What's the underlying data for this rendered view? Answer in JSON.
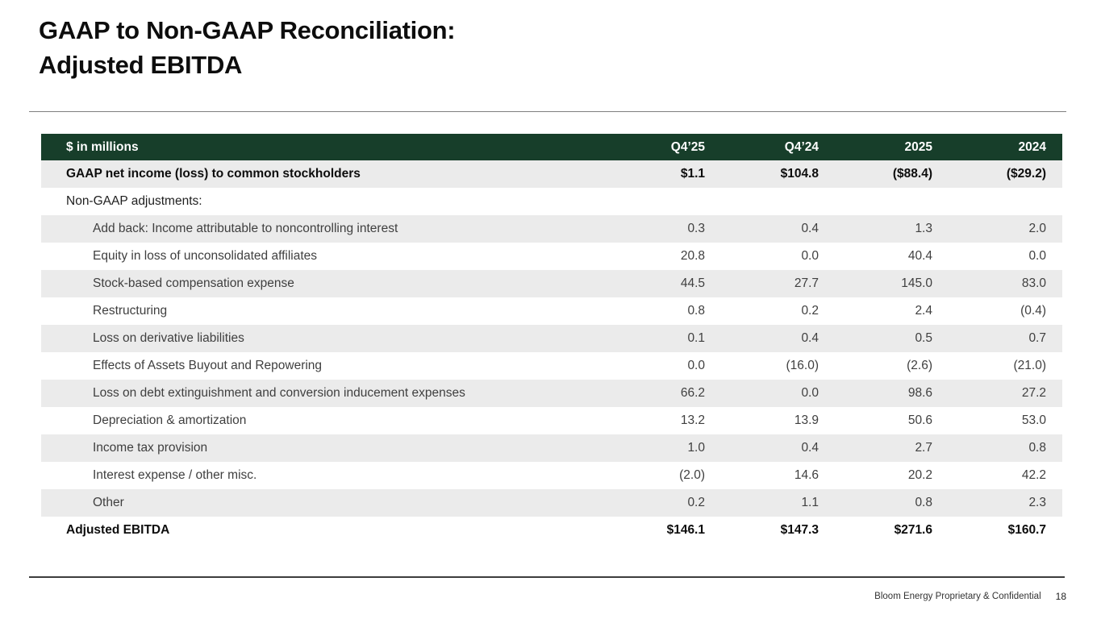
{
  "slide": {
    "title_line1": "GAAP to Non-GAAP Reconciliation:",
    "title_line2": "Adjusted EBITDA"
  },
  "table": {
    "unit_label": "$ in millions",
    "columns": [
      "Q4’25",
      "Q4’24",
      "2025",
      "2024"
    ],
    "rows": [
      {
        "label": "GAAP net income (loss) to common stockholders",
        "values": [
          "$1.1",
          "$104.8",
          "($88.4)",
          "($29.2)"
        ],
        "style": "bold",
        "indent": 0,
        "shade": true
      },
      {
        "label": "Non-GAAP adjustments:",
        "values": [
          "",
          "",
          "",
          ""
        ],
        "style": "plain",
        "indent": 0,
        "shade": false
      },
      {
        "label": "Add back: Income attributable to noncontrolling interest",
        "values": [
          "0.3",
          "0.4",
          "1.3",
          "2.0"
        ],
        "style": "adj",
        "indent": 1,
        "shade": true
      },
      {
        "label": "Equity in loss of unconsolidated affiliates",
        "values": [
          "20.8",
          "0.0",
          "40.4",
          "0.0"
        ],
        "style": "adj",
        "indent": 1,
        "shade": false
      },
      {
        "label": "Stock-based compensation expense",
        "values": [
          "44.5",
          "27.7",
          "145.0",
          "83.0"
        ],
        "style": "adj",
        "indent": 1,
        "shade": true
      },
      {
        "label": "Restructuring",
        "values": [
          "0.8",
          "0.2",
          "2.4",
          "(0.4)"
        ],
        "style": "adj",
        "indent": 1,
        "shade": false
      },
      {
        "label": "Loss on derivative liabilities",
        "values": [
          "0.1",
          "0.4",
          "0.5",
          "0.7"
        ],
        "style": "adj",
        "indent": 1,
        "shade": true
      },
      {
        "label": "Effects of Assets Buyout and Repowering",
        "values": [
          "0.0",
          "(16.0)",
          "(2.6)",
          "(21.0)"
        ],
        "style": "adj",
        "indent": 1,
        "shade": false
      },
      {
        "label": "Loss on debt extinguishment and conversion inducement expenses",
        "values": [
          "66.2",
          "0.0",
          "98.6",
          "27.2"
        ],
        "style": "adj",
        "indent": 1,
        "shade": true
      },
      {
        "label": "Depreciation & amortization",
        "values": [
          "13.2",
          "13.9",
          "50.6",
          "53.0"
        ],
        "style": "adj",
        "indent": 1,
        "shade": false
      },
      {
        "label": "Income tax provision",
        "values": [
          "1.0",
          "0.4",
          "2.7",
          "0.8"
        ],
        "style": "adj",
        "indent": 1,
        "shade": true
      },
      {
        "label": "Interest expense / other misc.",
        "values": [
          "(2.0)",
          "14.6",
          "20.2",
          "42.2"
        ],
        "style": "adj",
        "indent": 1,
        "shade": false
      },
      {
        "label": "Other",
        "values": [
          "0.2",
          "1.1",
          "0.8",
          "2.3"
        ],
        "style": "adj",
        "indent": 1,
        "shade": true
      },
      {
        "label": "Adjusted EBITDA",
        "values": [
          "$146.1",
          "$147.3",
          "$271.6",
          "$160.7"
        ],
        "style": "bold",
        "indent": 0,
        "shade": false
      }
    ]
  },
  "chart_data": {
    "type": "table",
    "title": "GAAP to Non-GAAP Reconciliation: Adjusted EBITDA ($ in millions)",
    "categories": [
      "Q4'25",
      "Q4'24",
      "2025",
      "2024"
    ],
    "series": [
      {
        "name": "GAAP net income (loss) to common stockholders",
        "values": [
          1.1,
          104.8,
          -88.4,
          -29.2
        ]
      },
      {
        "name": "Add back: Income attributable to noncontrolling interest",
        "values": [
          0.3,
          0.4,
          1.3,
          2.0
        ]
      },
      {
        "name": "Equity in loss of unconsolidated affiliates",
        "values": [
          20.8,
          0.0,
          40.4,
          0.0
        ]
      },
      {
        "name": "Stock-based compensation expense",
        "values": [
          44.5,
          27.7,
          145.0,
          83.0
        ]
      },
      {
        "name": "Restructuring",
        "values": [
          0.8,
          0.2,
          2.4,
          -0.4
        ]
      },
      {
        "name": "Loss on derivative liabilities",
        "values": [
          0.1,
          0.4,
          0.5,
          0.7
        ]
      },
      {
        "name": "Effects of Assets Buyout and Repowering",
        "values": [
          0.0,
          -16.0,
          -2.6,
          -21.0
        ]
      },
      {
        "name": "Loss on debt extinguishment and conversion inducement expenses",
        "values": [
          66.2,
          0.0,
          98.6,
          27.2
        ]
      },
      {
        "name": "Depreciation & amortization",
        "values": [
          13.2,
          13.9,
          50.6,
          53.0
        ]
      },
      {
        "name": "Income tax provision",
        "values": [
          1.0,
          0.4,
          2.7,
          0.8
        ]
      },
      {
        "name": "Interest expense / other misc.",
        "values": [
          -2.0,
          14.6,
          20.2,
          42.2
        ]
      },
      {
        "name": "Other",
        "values": [
          0.2,
          1.1,
          0.8,
          2.3
        ]
      },
      {
        "name": "Adjusted EBITDA",
        "values": [
          146.1,
          147.3,
          271.6,
          160.7
        ]
      }
    ]
  },
  "footer": {
    "confidential": "Bloom Energy Proprietary & Confidential",
    "page_number": "18"
  },
  "colors": {
    "header_green": "#173e2a",
    "stripe_gray": "#ebebeb"
  }
}
